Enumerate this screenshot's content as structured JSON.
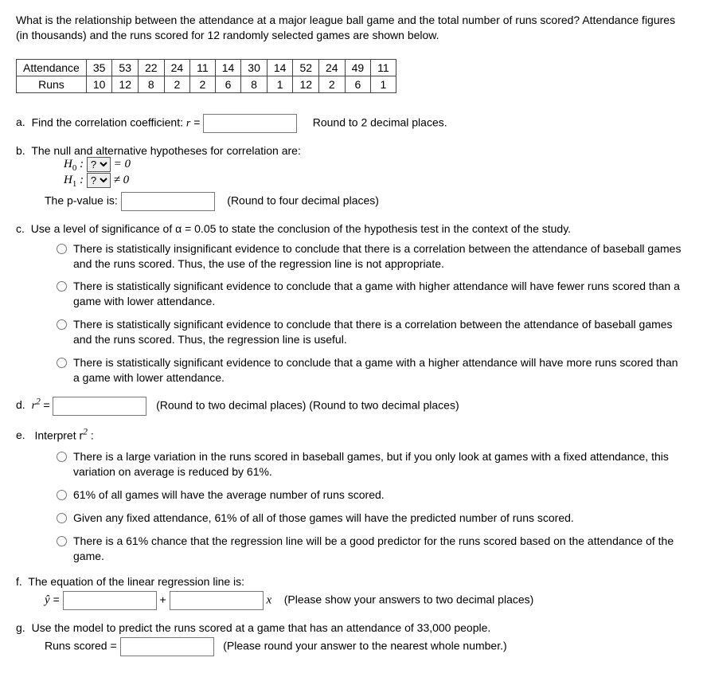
{
  "intro": "What is the relationship between the attendance at a major league ball game and the total number of runs scored? Attendance figures (in thousands) and the runs scored for 12 randomly selected games are shown below.",
  "table": {
    "rows": [
      {
        "label": "Attendance",
        "values": [
          "35",
          "53",
          "22",
          "24",
          "11",
          "14",
          "30",
          "14",
          "52",
          "24",
          "49",
          "11"
        ]
      },
      {
        "label": "Runs",
        "values": [
          "10",
          "12",
          "8",
          "2",
          "2",
          "6",
          "8",
          "1",
          "12",
          "2",
          "6",
          "1"
        ]
      }
    ]
  },
  "parts": {
    "a": {
      "letter": "a.",
      "text_before": "Find the correlation coefficient:  ",
      "math_r": "r",
      "equals": " = ",
      "after": "Round to 2 decimal places."
    },
    "b": {
      "letter": "b.",
      "text": "The null and alternative hypotheses for correlation are:",
      "h0_prefix": "H",
      "h0_sub": "0",
      "h0_colon": " : ",
      "dd_placeholder": "?",
      "h0_after": " = 0",
      "h1_prefix": "H",
      "h1_sub": "1",
      "h1_colon": " : ",
      "h1_after": " ≠ 0",
      "pvalue_label": "The p-value is: ",
      "pvalue_after": "(Round to four decimal places)"
    },
    "c": {
      "letter": "c.",
      "text": "Use a level of significance of α = 0.05 to state the conclusion of the hypothesis test in the context of the study.",
      "options": [
        "There is statistically insignificant evidence to conclude that there is a correlation between the attendance of baseball games and the runs scored. Thus, the use of the regression line is not appropriate.",
        "There is statistically significant evidence to conclude that a game with higher attendance will have fewer runs scored than a game with lower attendance.",
        "There is statistically significant evidence to conclude that there is a correlation between the attendance of baseball games and the runs scored. Thus, the regression line is useful.",
        "There is statistically significant evidence to conclude that a game with a higher attendance will have more runs scored than a game with lower attendance."
      ]
    },
    "d": {
      "letter": "d.",
      "math": "r",
      "sup": "2",
      "equals": " = ",
      "after": "(Round to two decimal places)  (Round to two decimal places)"
    },
    "e": {
      "letter": "e.",
      "text": "Interpret r",
      "sup": "2",
      "colon": " :",
      "options": [
        "There is a large variation in the runs scored in baseball games, but if you only look at games with a fixed attendance, this variation on average is reduced by 61%.",
        "61% of all games will have the average number of runs scored.",
        "Given any fixed attendance, 61% of all of those games will have the predicted number of runs scored.",
        "There is a 61% chance that the regression line will be a good predictor for the runs scored based on the attendance of the game."
      ]
    },
    "f": {
      "letter": "f.",
      "text": "The equation of the linear regression line is:",
      "yhat": "ŷ",
      "equals": " = ",
      "plus": "  +  ",
      "xvar": "x",
      "after": "(Please show your answers to two decimal places)"
    },
    "g": {
      "letter": "g.",
      "text": "Use the model to predict the runs scored at a game that has an attendance of 33,000 people.",
      "label": "Runs scored = ",
      "after": "(Please round your answer to the nearest whole number.)"
    }
  }
}
